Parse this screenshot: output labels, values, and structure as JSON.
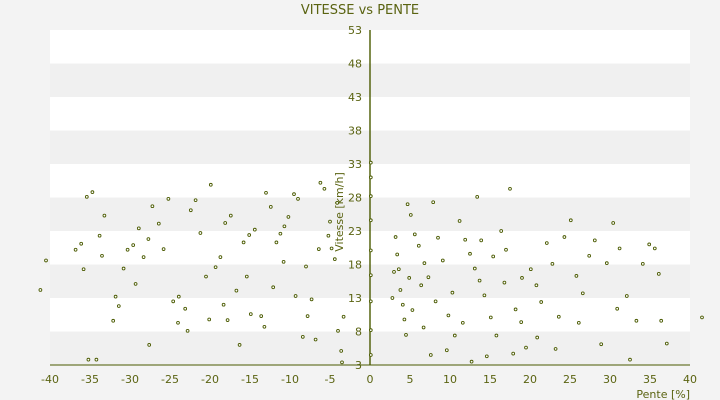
{
  "chart_data": {
    "type": "scatter",
    "title": "VITESSE vs PENTE",
    "xlabel": "Pente [%]",
    "ylabel": "Vitesse [km/h]",
    "xlim": [
      -40,
      40
    ],
    "ylim": [
      3,
      53
    ],
    "xticks": [
      -40,
      -35,
      -30,
      -25,
      -20,
      -15,
      -10,
      -5,
      0,
      5,
      10,
      15,
      20,
      25,
      30,
      35,
      40
    ],
    "yticks": [
      3,
      8,
      13,
      18,
      23,
      28,
      33,
      38,
      43,
      48,
      53
    ],
    "grid": "horizontal bands",
    "legend": "none",
    "colors": {
      "point": "#4a5a00",
      "axis": "#4a5a00",
      "band": "#f0f0f0",
      "plot": "#ffffff",
      "background": "#f3f3f3",
      "text": "#5a6311"
    },
    "series": [
      {
        "points": [
          [
            -41.2,
            14.2
          ],
          [
            -40.5,
            18.6
          ],
          [
            -36.8,
            20.2
          ],
          [
            -36.1,
            21.1
          ],
          [
            -35.4,
            28.1
          ],
          [
            -34.7,
            28.8
          ],
          [
            -35.8,
            17.3
          ],
          [
            -35.2,
            3.8
          ],
          [
            -34.2,
            3.8
          ],
          [
            -33.5,
            19.3
          ],
          [
            -33.8,
            22.3
          ],
          [
            -33.2,
            25.3
          ],
          [
            -32.1,
            9.6
          ],
          [
            -31.4,
            11.8
          ],
          [
            -30.8,
            17.4
          ],
          [
            -30.3,
            20.2
          ],
          [
            -29.6,
            20.9
          ],
          [
            -28.9,
            23.4
          ],
          [
            -28.3,
            19.1
          ],
          [
            -27.7,
            21.8
          ],
          [
            -27.2,
            26.7
          ],
          [
            -26.4,
            24.1
          ],
          [
            -25.8,
            20.3
          ],
          [
            -25.2,
            27.8
          ],
          [
            -24.6,
            12.5
          ],
          [
            -23.9,
            13.2
          ],
          [
            -23.1,
            11.4
          ],
          [
            -22.4,
            26.1
          ],
          [
            -21.8,
            27.6
          ],
          [
            -21.2,
            22.7
          ],
          [
            -20.5,
            16.2
          ],
          [
            -19.9,
            29.9
          ],
          [
            -19.3,
            17.6
          ],
          [
            -18.7,
            19.1
          ],
          [
            -18.1,
            24.2
          ],
          [
            -17.4,
            25.3
          ],
          [
            -17.8,
            9.7
          ],
          [
            -16.3,
            6.0
          ],
          [
            -15.8,
            21.3
          ],
          [
            -15.1,
            22.4
          ],
          [
            -14.4,
            23.2
          ],
          [
            -14.9,
            10.6
          ],
          [
            -13.6,
            10.3
          ],
          [
            -13.0,
            28.7
          ],
          [
            -12.4,
            26.6
          ],
          [
            -11.7,
            21.3
          ],
          [
            -11.2,
            22.6
          ],
          [
            -10.7,
            23.7
          ],
          [
            -10.2,
            25.1
          ],
          [
            -9.5,
            28.5
          ],
          [
            -9.0,
            27.8
          ],
          [
            -8.4,
            7.2
          ],
          [
            -7.8,
            10.3
          ],
          [
            -7.3,
            12.8
          ],
          [
            -6.8,
            6.8
          ],
          [
            -6.2,
            30.2
          ],
          [
            -5.7,
            29.3
          ],
          [
            -5.2,
            22.3
          ],
          [
            -4.8,
            20.4
          ],
          [
            -4.4,
            18.8
          ],
          [
            -4.0,
            8.1
          ],
          [
            -3.6,
            5.1
          ],
          [
            -3.3,
            10.2
          ],
          [
            -24.0,
            9.3
          ],
          [
            -22.8,
            8.1
          ],
          [
            -20.1,
            9.8
          ],
          [
            -18.3,
            12.0
          ],
          [
            -16.7,
            14.1
          ],
          [
            -15.4,
            16.2
          ],
          [
            -13.2,
            8.7
          ],
          [
            -12.1,
            14.6
          ],
          [
            -10.8,
            18.4
          ],
          [
            -9.3,
            13.3
          ],
          [
            -8.0,
            17.7
          ],
          [
            -6.4,
            20.3
          ],
          [
            -5.0,
            24.4
          ],
          [
            -4.1,
            27.2
          ],
          [
            -3.5,
            3.4
          ],
          [
            -27.6,
            6.0
          ],
          [
            -29.3,
            15.1
          ],
          [
            -31.8,
            13.2
          ],
          [
            0.1,
            4.5
          ],
          [
            0.1,
            8.2
          ],
          [
            0.1,
            12.5
          ],
          [
            0.1,
            16.4
          ],
          [
            0.1,
            20.1
          ],
          [
            0.1,
            24.6
          ],
          [
            0.1,
            28.2
          ],
          [
            0.1,
            31.0
          ],
          [
            0.1,
            33.2
          ],
          [
            3.2,
            22.1
          ],
          [
            3.4,
            19.5
          ],
          [
            3.6,
            17.3
          ],
          [
            3.8,
            14.2
          ],
          [
            4.1,
            12.0
          ],
          [
            4.3,
            9.8
          ],
          [
            4.5,
            7.5
          ],
          [
            4.7,
            27.0
          ],
          [
            5.1,
            25.4
          ],
          [
            5.6,
            22.5
          ],
          [
            6.1,
            20.8
          ],
          [
            6.8,
            18.2
          ],
          [
            7.3,
            16.1
          ],
          [
            7.9,
            27.3
          ],
          [
            8.5,
            22.0
          ],
          [
            9.1,
            18.6
          ],
          [
            9.8,
            10.4
          ],
          [
            10.6,
            7.4
          ],
          [
            11.2,
            24.5
          ],
          [
            11.9,
            21.7
          ],
          [
            12.5,
            19.6
          ],
          [
            13.1,
            17.4
          ],
          [
            13.7,
            15.6
          ],
          [
            13.4,
            28.1
          ],
          [
            14.3,
            13.4
          ],
          [
            15.1,
            10.1
          ],
          [
            15.8,
            7.4
          ],
          [
            16.4,
            23.0
          ],
          [
            17.0,
            20.2
          ],
          [
            17.5,
            29.3
          ],
          [
            18.2,
            11.3
          ],
          [
            18.9,
            9.4
          ],
          [
            19.5,
            5.6
          ],
          [
            20.1,
            17.3
          ],
          [
            20.8,
            14.9
          ],
          [
            21.4,
            12.4
          ],
          [
            22.1,
            21.2
          ],
          [
            22.8,
            18.1
          ],
          [
            23.6,
            10.2
          ],
          [
            24.3,
            22.1
          ],
          [
            25.1,
            24.6
          ],
          [
            25.8,
            16.3
          ],
          [
            26.6,
            13.7
          ],
          [
            27.4,
            19.3
          ],
          [
            28.1,
            21.6
          ],
          [
            28.9,
            6.1
          ],
          [
            29.6,
            18.2
          ],
          [
            30.4,
            24.2
          ],
          [
            31.2,
            20.4
          ],
          [
            32.1,
            13.3
          ],
          [
            32.5,
            3.8
          ],
          [
            33.3,
            9.6
          ],
          [
            34.1,
            18.1
          ],
          [
            34.9,
            21.0
          ],
          [
            35.6,
            20.4
          ],
          [
            36.4,
            9.6
          ],
          [
            37.1,
            6.2
          ],
          [
            36.1,
            16.6
          ],
          [
            41.5,
            10.1
          ],
          [
            23.2,
            5.4
          ],
          [
            20.9,
            7.1
          ],
          [
            17.9,
            4.7
          ],
          [
            14.6,
            4.3
          ],
          [
            12.7,
            3.5
          ],
          [
            9.6,
            5.2
          ],
          [
            8.2,
            12.5
          ],
          [
            6.4,
            14.9
          ],
          [
            5.3,
            11.2
          ],
          [
            4.9,
            16.0
          ],
          [
            7.6,
            4.5
          ],
          [
            11.6,
            9.3
          ],
          [
            15.4,
            19.2
          ],
          [
            19.0,
            16.0
          ],
          [
            26.1,
            9.3
          ],
          [
            30.9,
            11.4
          ],
          [
            2.8,
            13.0
          ],
          [
            3.0,
            16.9
          ],
          [
            6.7,
            8.6
          ],
          [
            10.3,
            13.8
          ],
          [
            13.9,
            21.6
          ],
          [
            16.8,
            15.3
          ]
        ]
      }
    ]
  }
}
